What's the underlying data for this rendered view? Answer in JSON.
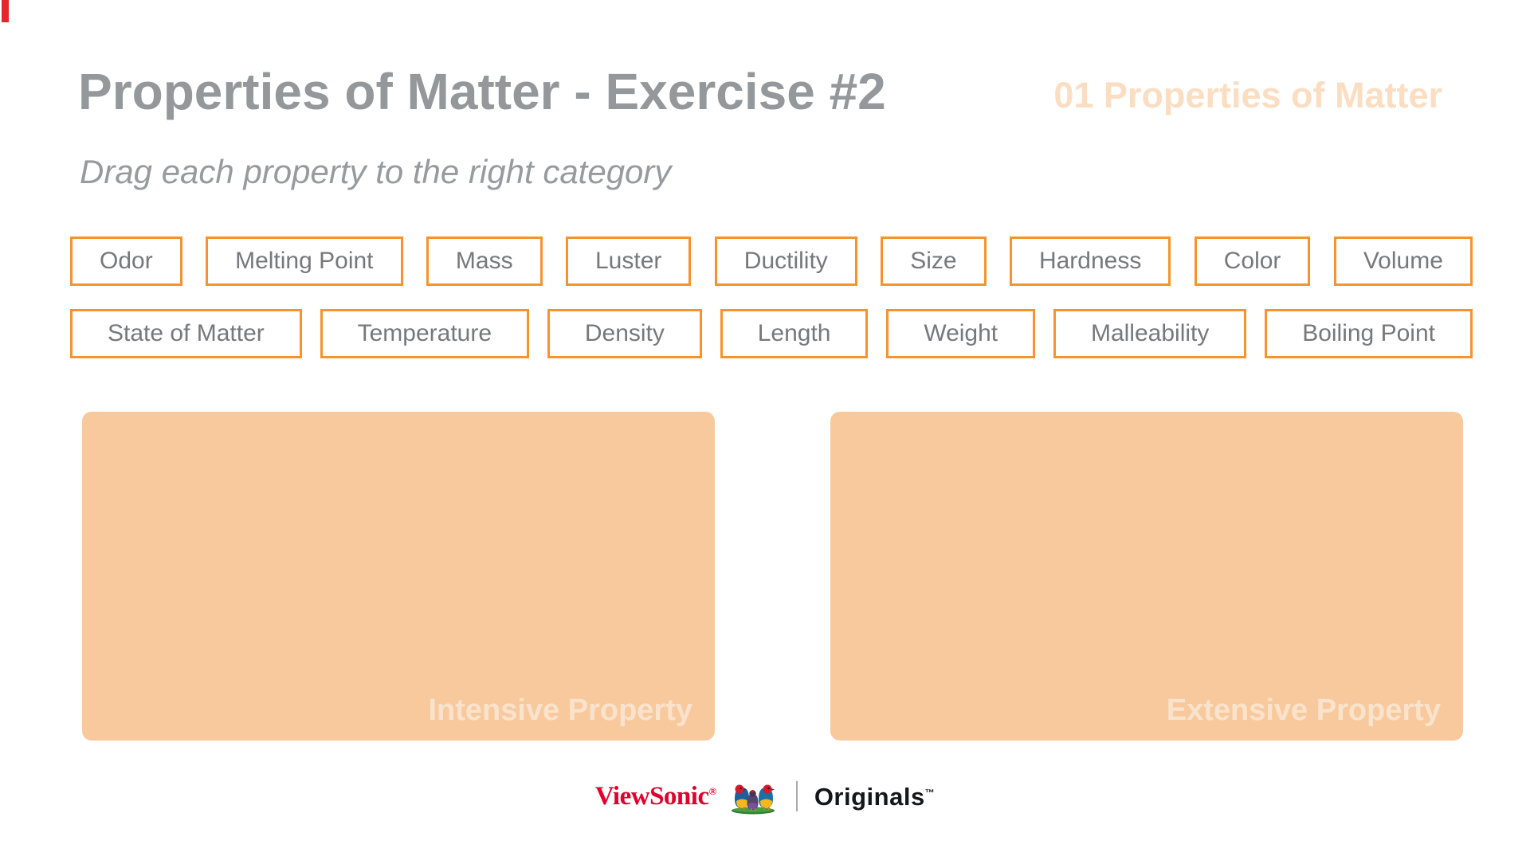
{
  "theme": {
    "accent_red": "#e8242d",
    "title_gray": "#94989b",
    "subtitle_gray": "#979b9e",
    "tag_peach": "#fbdec2",
    "chip_orange": "#f6932a",
    "chip_gray": "#77787b",
    "zone_peach": "#f9c99e",
    "zone_label_peach": "#fae3cc",
    "brand_red": "#e4002b"
  },
  "header": {
    "title": "Properties of Matter - Exercise #2",
    "lesson_tag": "01 Properties of Matter",
    "subtitle": "Drag each property to the right category"
  },
  "chips": {
    "rows": [
      [
        "Odor",
        "Melting Point",
        "Mass",
        "Luster",
        "Ductility",
        "Size",
        "Hardness",
        "Color",
        "Volume"
      ],
      [
        "State of Matter",
        "Temperature",
        "Density",
        "Length",
        "Weight",
        "Malleability",
        "Boiling Point"
      ]
    ]
  },
  "categories": {
    "items": [
      {
        "label": "Intensive Property"
      },
      {
        "label": "Extensive Property"
      }
    ]
  },
  "footer": {
    "brand": "ViewSonic",
    "brand_reg": "®",
    "product": "Originals",
    "product_tm": "™"
  }
}
